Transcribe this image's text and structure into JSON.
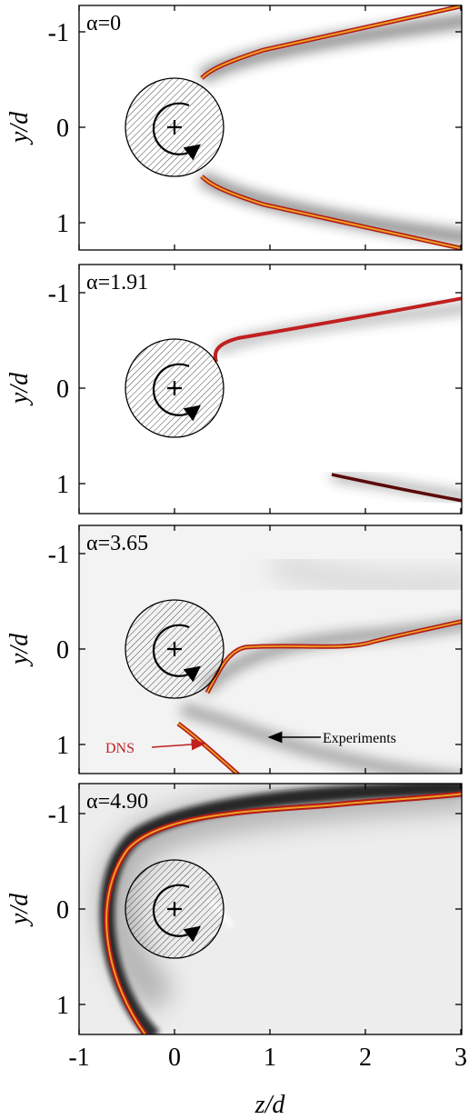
{
  "figure": {
    "x_axis": {
      "label_var": "z",
      "label_den": "d",
      "ticks": [
        "-1",
        "0",
        "1",
        "2",
        "3"
      ],
      "values": [
        -1,
        0,
        1,
        2,
        3
      ],
      "range": [
        -1,
        3
      ]
    },
    "y_axis": {
      "label_var": "y",
      "label_den": "d",
      "range": [
        -1.3,
        1.3
      ],
      "inverted": true
    },
    "panels": [
      {
        "name": "alpha-0",
        "label": "α=0",
        "y_ticks": [
          "-1",
          "0",
          "1"
        ],
        "y_values": [
          -1,
          0,
          1
        ],
        "background": "#ffffff"
      },
      {
        "name": "alpha-1-91",
        "label": "α=1.91",
        "y_ticks": [
          "-1",
          "0",
          "1"
        ],
        "y_values": [
          -1,
          0,
          1
        ],
        "background": "#ffffff"
      },
      {
        "name": "alpha-3-65",
        "label": "α=3.65",
        "y_ticks": [
          "-1",
          "0",
          "1"
        ],
        "y_values": [
          -1,
          0,
          1
        ],
        "background": "#f3f3f3",
        "annotations": {
          "dns": "DNS",
          "experiments": "Experiments"
        }
      },
      {
        "name": "alpha-4-90",
        "label": "α=4.90",
        "y_ticks": [
          "-1",
          "0",
          "1"
        ],
        "y_values": [
          -1,
          0,
          1
        ],
        "background": "#e6e6e6"
      }
    ],
    "colors": {
      "dns_line": "#b01a1a",
      "dns_core": "#f0a020",
      "experiment_shade": "#1a1a1a",
      "dns_label": "#c02020"
    }
  }
}
